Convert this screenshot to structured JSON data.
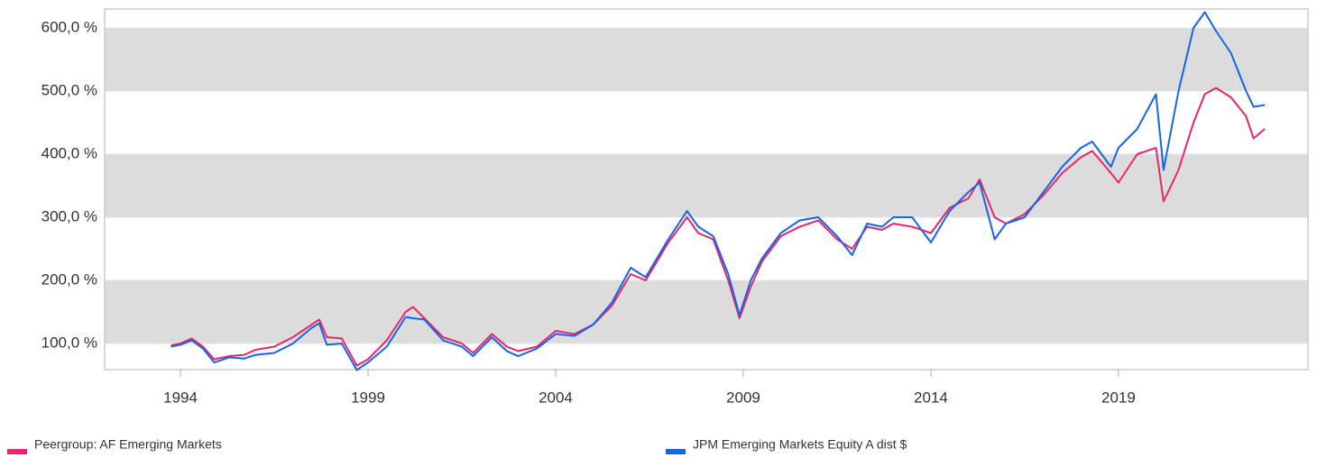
{
  "chart_data": {
    "type": "line",
    "x": [
      1993.75,
      1994.0,
      1994.3,
      1994.6,
      1994.9,
      1995.3,
      1995.7,
      1996.0,
      1996.5,
      1997.0,
      1997.5,
      1997.7,
      1997.9,
      1998.3,
      1998.7,
      1999.0,
      1999.5,
      2000.0,
      2000.2,
      2000.5,
      2001.0,
      2001.5,
      2001.8,
      2002.3,
      2002.7,
      2003.0,
      2003.5,
      2004.0,
      2004.5,
      2005.0,
      2005.5,
      2006.0,
      2006.4,
      2007.0,
      2007.5,
      2007.8,
      2008.2,
      2008.6,
      2008.9,
      2009.2,
      2009.5,
      2010.0,
      2010.5,
      2011.0,
      2011.5,
      2011.9,
      2012.3,
      2012.7,
      2013.0,
      2013.5,
      2014.0,
      2014.5,
      2015.0,
      2015.3,
      2015.7,
      2016.0,
      2016.5,
      2017.0,
      2017.5,
      2018.0,
      2018.3,
      2018.8,
      2019.0,
      2019.5,
      2020.0,
      2020.2,
      2020.6,
      2021.0,
      2021.3,
      2021.6,
      2022.0,
      2022.4,
      2022.6,
      2022.9
    ],
    "series": [
      {
        "name": "Peergroup: AF Emerging Markets",
        "color": "#e8246a",
        "values": [
          97,
          100,
          108,
          95,
          75,
          80,
          82,
          90,
          95,
          110,
          130,
          138,
          110,
          108,
          65,
          75,
          105,
          150,
          158,
          140,
          110,
          100,
          85,
          115,
          95,
          88,
          95,
          120,
          115,
          130,
          160,
          210,
          200,
          260,
          300,
          275,
          265,
          200,
          140,
          190,
          230,
          270,
          285,
          295,
          265,
          250,
          285,
          280,
          290,
          285,
          275,
          315,
          330,
          360,
          300,
          290,
          305,
          335,
          370,
          395,
          405,
          370,
          355,
          400,
          410,
          325,
          375,
          450,
          495,
          505,
          490,
          460,
          425,
          440
        ]
      },
      {
        "name": "JPM Emerging Markets Equity A dist $",
        "color": "#1565e8",
        "values": [
          95,
          98,
          105,
          92,
          70,
          78,
          76,
          82,
          85,
          100,
          125,
          132,
          98,
          100,
          58,
          70,
          95,
          142,
          140,
          138,
          105,
          95,
          80,
          110,
          88,
          80,
          92,
          115,
          112,
          130,
          165,
          220,
          205,
          265,
          310,
          285,
          270,
          210,
          145,
          200,
          235,
          275,
          295,
          300,
          270,
          240,
          290,
          285,
          300,
          300,
          260,
          310,
          340,
          355,
          265,
          290,
          300,
          340,
          380,
          410,
          420,
          380,
          410,
          440,
          495,
          375,
          500,
          600,
          625,
          595,
          560,
          500,
          475,
          478
        ]
      }
    ],
    "xlim": [
      1991.98,
      2024.05
    ],
    "xticks": [
      1994,
      1999,
      2004,
      2009,
      2014,
      2019
    ],
    "ylim": [
      58.6,
      630
    ],
    "yticks": [
      {
        "value": 100,
        "label": "100,0 %"
      },
      {
        "value": 200,
        "label": "200,0 %"
      },
      {
        "value": 300,
        "label": "300,0 %"
      },
      {
        "value": 400,
        "label": "400,0 %"
      },
      {
        "value": 500,
        "label": "500,0 %"
      },
      {
        "value": 600,
        "label": "600,0 %"
      }
    ],
    "bands": true,
    "band_color": "#dcdcdc",
    "legend": "bottom"
  }
}
